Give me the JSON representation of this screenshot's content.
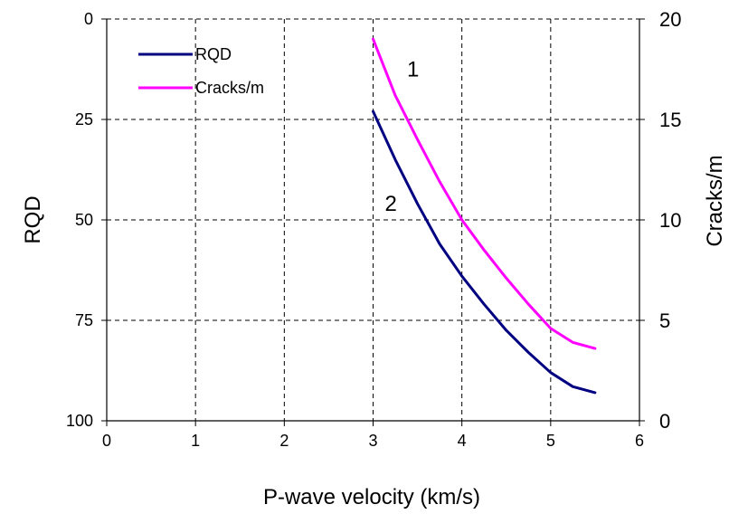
{
  "chart_data": {
    "type": "line",
    "xlabel": "P-wave velocity (km/s)",
    "ylabel": "RQD",
    "y2label": "Cracks/m",
    "xlim": [
      0,
      6
    ],
    "ylim": [
      100,
      0
    ],
    "y2lim": [
      0,
      20
    ],
    "y_inverted": true,
    "grid": true,
    "legend_position": "top-left",
    "x_ticks": [
      "0",
      "1",
      "2",
      "3",
      "4",
      "5",
      "6"
    ],
    "y_ticks": [
      "0",
      "25",
      "50",
      "75",
      "100"
    ],
    "y2_ticks": [
      "20",
      "15",
      "10",
      "5",
      "0"
    ],
    "series": [
      {
        "name": "RQD",
        "axis": "left",
        "color": "#000080",
        "x": [
          3.0,
          3.25,
          3.5,
          3.75,
          4.0,
          4.25,
          4.5,
          4.75,
          5.0,
          5.25,
          5.5
        ],
        "y": [
          23,
          35,
          46,
          56,
          64,
          71,
          77.5,
          83,
          88,
          91.5,
          93
        ]
      },
      {
        "name": "Cracks/m",
        "axis": "right",
        "color": "#ff00ff",
        "x": [
          3.0,
          3.25,
          3.5,
          3.75,
          4.0,
          4.25,
          4.5,
          4.75,
          5.0,
          5.25,
          5.5
        ],
        "y": [
          19.0,
          16.2,
          14.0,
          11.9,
          10.0,
          8.5,
          7.1,
          5.8,
          4.6,
          3.9,
          3.6
        ]
      }
    ],
    "annotations": [
      {
        "text": "1",
        "x": 3.45,
        "y2": 17.5
      },
      {
        "text": "2",
        "x": 3.2,
        "y": 46
      }
    ]
  }
}
